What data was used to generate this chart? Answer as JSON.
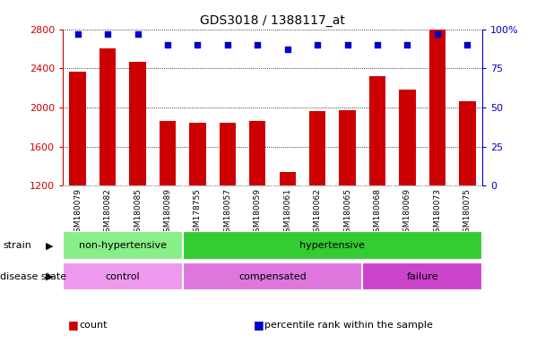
{
  "title": "GDS3018 / 1388117_at",
  "categories": [
    "GSM180079",
    "GSM180082",
    "GSM180085",
    "GSM180089",
    "GSM178755",
    "GSM180057",
    "GSM180059",
    "GSM180061",
    "GSM180062",
    "GSM180065",
    "GSM180068",
    "GSM180069",
    "GSM180073",
    "GSM180075"
  ],
  "counts": [
    2370,
    2600,
    2470,
    1860,
    1840,
    1840,
    1860,
    1340,
    1960,
    1970,
    2320,
    2180,
    2800,
    2060
  ],
  "percentile_ranks": [
    97,
    97,
    97,
    90,
    90,
    90,
    90,
    87,
    90,
    90,
    90,
    90,
    97,
    90
  ],
  "ylim_left": [
    1200,
    2800
  ],
  "ylim_right": [
    0,
    100
  ],
  "yticks_left": [
    1200,
    1600,
    2000,
    2400,
    2800
  ],
  "yticks_right": [
    0,
    25,
    50,
    75,
    100
  ],
  "ytick_right_labels": [
    "0",
    "25",
    "50",
    "75",
    "100%"
  ],
  "bar_color": "#cc0000",
  "scatter_color": "#0000cc",
  "strain_groups": [
    {
      "label": "non-hypertensive",
      "start": 0,
      "end": 4,
      "color": "#88ee88"
    },
    {
      "label": "hypertensive",
      "start": 4,
      "end": 14,
      "color": "#33cc33"
    }
  ],
  "disease_groups": [
    {
      "label": "control",
      "start": 0,
      "end": 4,
      "color": "#ee99ee"
    },
    {
      "label": "compensated",
      "start": 4,
      "end": 10,
      "color": "#dd77dd"
    },
    {
      "label": "failure",
      "start": 10,
      "end": 14,
      "color": "#cc44cc"
    }
  ],
  "legend_items": [
    {
      "label": "count",
      "color": "#cc0000"
    },
    {
      "label": "percentile rank within the sample",
      "color": "#0000cc"
    }
  ],
  "left_axis_color": "#cc0000",
  "right_axis_color": "#0000cc",
  "background_color": "#ffffff",
  "strain_label": "strain",
  "disease_label": "disease state",
  "xtick_bg_color": "#d0d0d0"
}
